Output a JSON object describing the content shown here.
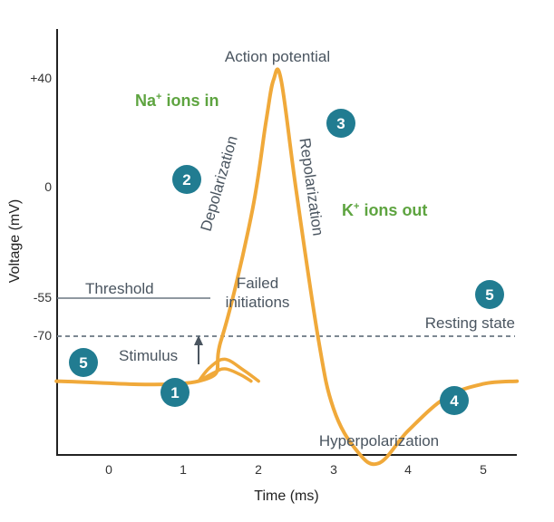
{
  "chart_data": {
    "type": "line",
    "title": "",
    "xlabel": "Time (ms)",
    "ylabel": "Voltage (mV)",
    "xlim": [
      -0.7,
      5.45
    ],
    "x_ticks": [
      "0",
      "1",
      "2",
      "3",
      "4",
      "5"
    ],
    "y_ticks": [
      {
        "value": 40,
        "label": "+40"
      },
      {
        "value": 0,
        "label": "0"
      },
      {
        "value": -55,
        "label": "-55"
      },
      {
        "value": -70,
        "label": "-70"
      }
    ],
    "series": [
      {
        "name": "",
        "color": "#f0a93a",
        "points": [
          [
            -0.7,
            -70
          ],
          [
            1.2,
            -70
          ],
          [
            1.5,
            -55
          ],
          [
            1.9,
            -10
          ],
          [
            2.1,
            25
          ],
          [
            2.2,
            40
          ],
          [
            2.3,
            40
          ],
          [
            2.5,
            0
          ],
          [
            2.8,
            -55
          ],
          [
            3.0,
            -80
          ],
          [
            3.3,
            -95
          ],
          [
            3.6,
            -100
          ],
          [
            4.0,
            -88
          ],
          [
            4.5,
            -76
          ],
          [
            5.0,
            -71
          ],
          [
            5.45,
            -70
          ]
        ]
      },
      {
        "name": "",
        "color": "#f0a93a",
        "points": [
          [
            1.2,
            -70
          ],
          [
            1.35,
            -65
          ],
          [
            1.55,
            -62
          ],
          [
            1.8,
            -66
          ],
          [
            2.0,
            -70
          ]
        ]
      },
      {
        "name": "",
        "color": "#f0a93a",
        "points": [
          [
            1.2,
            -70
          ],
          [
            1.4,
            -67
          ],
          [
            1.55,
            -65.5
          ],
          [
            1.75,
            -67.5
          ],
          [
            1.9,
            -70
          ]
        ]
      }
    ],
    "reference_lines": [
      {
        "label": "Threshold",
        "value": -55,
        "color": "#6a7680"
      },
      {
        "label": "Resting state",
        "value": -70,
        "color": "#7c8791"
      }
    ],
    "annotations": {
      "action_potential": "Action potential",
      "na_ions": "Na",
      "na_sup": "+",
      "na_rest": " ions in",
      "k_ions": "K",
      "k_sup": "+",
      "k_rest": " ions out",
      "depolarization": "Depolarization",
      "repolarization": "Repolarization",
      "failed": "Failed",
      "initiations": "initiations",
      "stimulus": "Stimulus",
      "hyperpolarization": "Hyperpolarization"
    },
    "badges": [
      "1",
      "2",
      "3",
      "4",
      "5",
      "5"
    ],
    "colors": {
      "curve": "#f0a93a",
      "badge": "#217c91",
      "ion_text": "#5ea440",
      "annotation": "#4a5560"
    }
  }
}
